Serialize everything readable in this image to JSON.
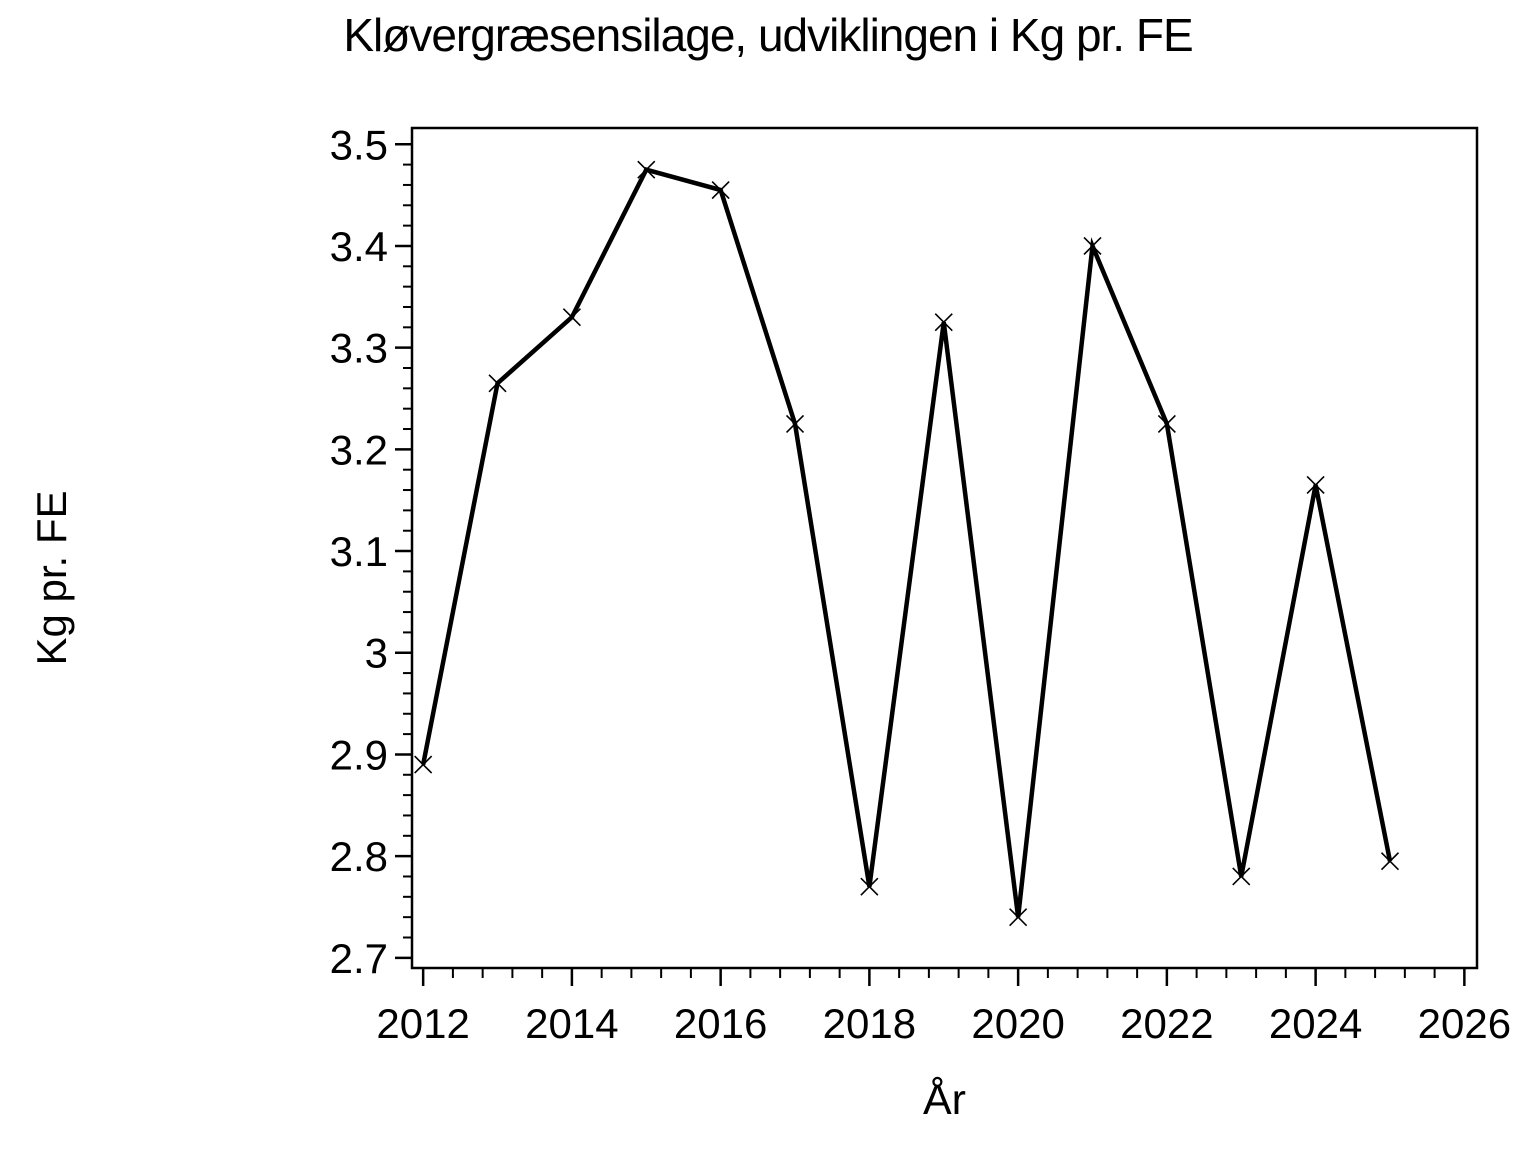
{
  "chart_data": {
    "type": "line",
    "title": "Kløvergræsensilage, udviklingen i Kg pr. FE",
    "xlabel": "År",
    "ylabel": "Kg pr. FE",
    "x": [
      2012,
      2013,
      2014,
      2015,
      2016,
      2017,
      2018,
      2019,
      2020,
      2021,
      2022,
      2023,
      2024,
      2025
    ],
    "values": [
      2.89,
      3.265,
      3.33,
      3.475,
      3.455,
      3.225,
      2.77,
      3.325,
      2.74,
      3.4,
      3.225,
      2.78,
      3.165,
      2.795
    ],
    "series_name": "Kg pr. FE",
    "marker": "x",
    "line_color": "#000000",
    "background_color": "#ffffff",
    "grid": false,
    "legend": null,
    "xlim": [
      2011.85,
      2026.17
    ],
    "ylim": [
      2.69,
      3.516
    ],
    "x_ticks": {
      "start": 2012,
      "end": 2026,
      "minor_step": 0.4,
      "major_step": 2,
      "labels": [
        "2012",
        "2014",
        "2016",
        "2018",
        "2020",
        "2022",
        "2024",
        "2026"
      ]
    },
    "y_ticks": {
      "start": 2.7,
      "end": 3.5,
      "minor_step": 0.02,
      "major_step": 0.1,
      "labels": [
        "2.7",
        "2.8",
        "2.9",
        "3",
        "3.1",
        "3.2",
        "3.3",
        "3.4",
        "3.5"
      ]
    }
  }
}
